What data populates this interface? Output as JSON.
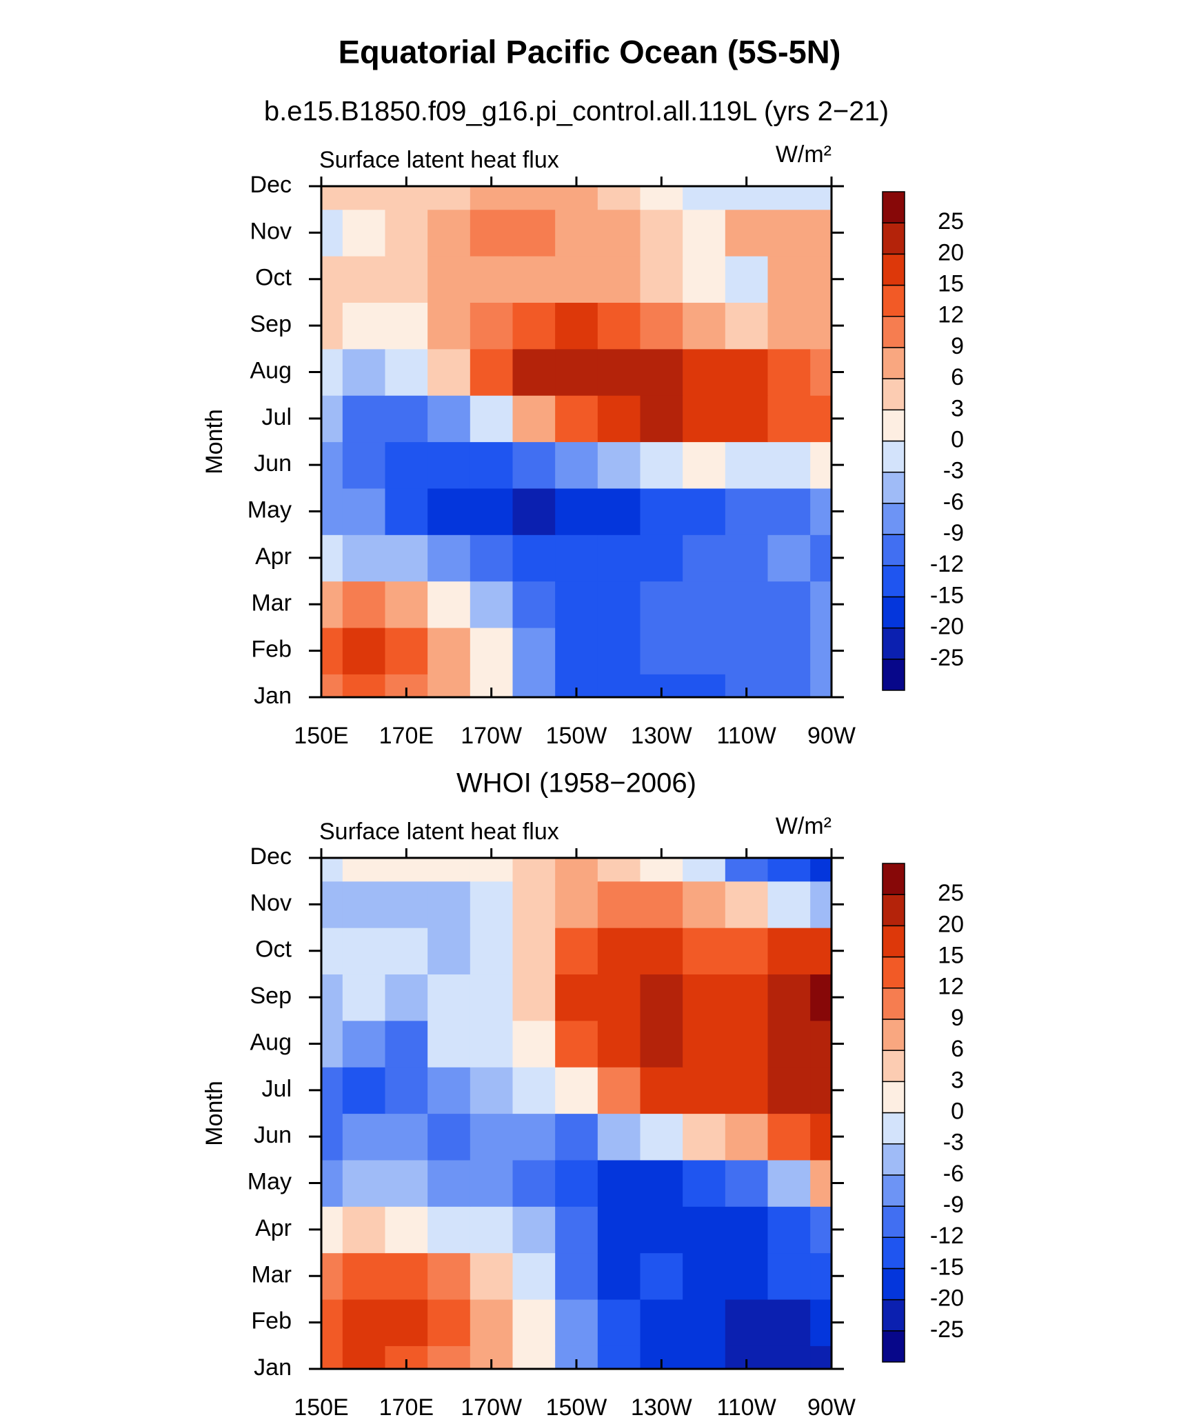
{
  "title": "Equatorial Pacific Ocean (5S-5N)",
  "chart_data": [
    {
      "type": "contour",
      "subtitle": "b.e15.B1850.f09_g16.pi_control.all.119L (yrs 2−21)",
      "left_label": "Surface latent heat flux",
      "units": "W/m²",
      "ylabel": "Month",
      "x": [
        150,
        160,
        170,
        180,
        190,
        200,
        210,
        220,
        230,
        240,
        250,
        260,
        270
      ],
      "xlim": [
        150,
        270
      ],
      "xticks": [
        {
          "value": 150,
          "label": "150E"
        },
        {
          "value": 170,
          "label": "170E"
        },
        {
          "value": 190,
          "label": "170W"
        },
        {
          "value": 210,
          "label": "150W"
        },
        {
          "value": 230,
          "label": "130W"
        },
        {
          "value": 250,
          "label": "110W"
        },
        {
          "value": 270,
          "label": "90W"
        }
      ],
      "categories": [
        "Jan",
        "Feb",
        "Mar",
        "Apr",
        "May",
        "Jun",
        "Jul",
        "Aug",
        "Sep",
        "Oct",
        "Nov",
        "Dec"
      ],
      "z": [
        [
          9,
          12,
          9,
          6,
          0,
          -9,
          -15,
          -15,
          -15,
          -15,
          -12,
          -12,
          -9
        ],
        [
          12,
          15,
          12,
          6,
          0,
          -9,
          -15,
          -15,
          -12,
          -12,
          -12,
          -12,
          -9
        ],
        [
          6,
          9,
          6,
          0,
          -6,
          -12,
          -15,
          -15,
          -12,
          -12,
          -12,
          -12,
          -9
        ],
        [
          -3,
          -6,
          -6,
          -9,
          -12,
          -15,
          -15,
          -15,
          -15,
          -12,
          -12,
          -9,
          -12
        ],
        [
          -9,
          -9,
          -15,
          -20,
          -20,
          -25,
          -20,
          -20,
          -15,
          -15,
          -12,
          -12,
          -9
        ],
        [
          -9,
          -12,
          -15,
          -15,
          -15,
          -12,
          -9,
          -6,
          -3,
          0,
          -3,
          -3,
          0
        ],
        [
          -6,
          -12,
          -12,
          -9,
          -3,
          6,
          12,
          15,
          20,
          15,
          15,
          12,
          12
        ],
        [
          -3,
          -6,
          -3,
          3,
          12,
          20,
          20,
          20,
          20,
          15,
          15,
          12,
          9
        ],
        [
          3,
          0,
          0,
          6,
          9,
          12,
          15,
          12,
          9,
          6,
          3,
          6,
          6
        ],
        [
          3,
          3,
          3,
          6,
          6,
          6,
          6,
          6,
          3,
          0,
          -3,
          6,
          6
        ],
        [
          -3,
          0,
          3,
          6,
          9,
          9,
          6,
          6,
          3,
          0,
          6,
          6,
          6
        ],
        [
          3,
          3,
          3,
          3,
          6,
          6,
          6,
          3,
          0,
          -3,
          -3,
          -3,
          -3
        ]
      ],
      "levels": [
        -25,
        -20,
        -15,
        -12,
        -9,
        -6,
        -3,
        0,
        3,
        6,
        9,
        12,
        15,
        20,
        25
      ],
      "colors": [
        "#07078a",
        "#0b20b0",
        "#0436dc",
        "#1f55f0",
        "#416ff2",
        "#6d94f5",
        "#9fbbf7",
        "#d3e3fb",
        "#fdeee2",
        "#fcccb2",
        "#f9a780",
        "#f67d50",
        "#f25a26",
        "#dd380a",
        "#b4230a",
        "#870808"
      ]
    },
    {
      "type": "contour",
      "subtitle": "WHOI (1958−2006)",
      "left_label": "Surface latent heat flux",
      "units": "W/m²",
      "ylabel": "Month",
      "x": [
        150,
        160,
        170,
        180,
        190,
        200,
        210,
        220,
        230,
        240,
        250,
        260,
        270
      ],
      "xlim": [
        150,
        270
      ],
      "xticks": [
        {
          "value": 150,
          "label": "150E"
        },
        {
          "value": 170,
          "label": "170E"
        },
        {
          "value": 190,
          "label": "170W"
        },
        {
          "value": 210,
          "label": "150W"
        },
        {
          "value": 230,
          "label": "130W"
        },
        {
          "value": 250,
          "label": "110W"
        },
        {
          "value": 270,
          "label": "90W"
        }
      ],
      "categories": [
        "Jan",
        "Feb",
        "Mar",
        "Apr",
        "May",
        "Jun",
        "Jul",
        "Aug",
        "Sep",
        "Oct",
        "Nov",
        "Dec"
      ],
      "z": [
        [
          12,
          15,
          12,
          9,
          6,
          0,
          -9,
          -15,
          -20,
          -20,
          -25,
          -25,
          -25
        ],
        [
          12,
          15,
          15,
          12,
          6,
          0,
          -9,
          -15,
          -20,
          -20,
          -25,
          -25,
          -20
        ],
        [
          9,
          12,
          12,
          9,
          3,
          -3,
          -12,
          -20,
          -15,
          -20,
          -20,
          -15,
          -15
        ],
        [
          0,
          3,
          0,
          -3,
          -3,
          -6,
          -12,
          -20,
          -20,
          -20,
          -20,
          -15,
          -12
        ],
        [
          -9,
          -6,
          -6,
          -9,
          -9,
          -12,
          -15,
          -20,
          -20,
          -15,
          -12,
          -6,
          6
        ],
        [
          -12,
          -9,
          -9,
          -12,
          -9,
          -9,
          -12,
          -6,
          -3,
          3,
          6,
          12,
          15
        ],
        [
          -12,
          -15,
          -12,
          -9,
          -6,
          -3,
          0,
          9,
          15,
          15,
          15,
          20,
          20
        ],
        [
          -6,
          -9,
          -12,
          -3,
          -3,
          0,
          12,
          15,
          20,
          15,
          15,
          20,
          20
        ],
        [
          -6,
          -3,
          -6,
          -3,
          -3,
          3,
          15,
          15,
          20,
          15,
          15,
          20,
          25
        ],
        [
          -3,
          -3,
          -3,
          -6,
          -3,
          3,
          12,
          15,
          15,
          12,
          12,
          15,
          15
        ],
        [
          -6,
          -6,
          -6,
          -6,
          -3,
          3,
          6,
          9,
          9,
          6,
          3,
          -3,
          -6
        ],
        [
          -3,
          0,
          0,
          0,
          0,
          3,
          6,
          3,
          0,
          -3,
          -12,
          -15,
          -20
        ]
      ],
      "levels": [
        -25,
        -20,
        -15,
        -12,
        -9,
        -6,
        -3,
        0,
        3,
        6,
        9,
        12,
        15,
        20,
        25
      ],
      "colors": [
        "#07078a",
        "#0b20b0",
        "#0436dc",
        "#1f55f0",
        "#416ff2",
        "#6d94f5",
        "#9fbbf7",
        "#d3e3fb",
        "#fdeee2",
        "#fcccb2",
        "#f9a780",
        "#f67d50",
        "#f25a26",
        "#dd380a",
        "#b4230a",
        "#870808"
      ]
    }
  ]
}
